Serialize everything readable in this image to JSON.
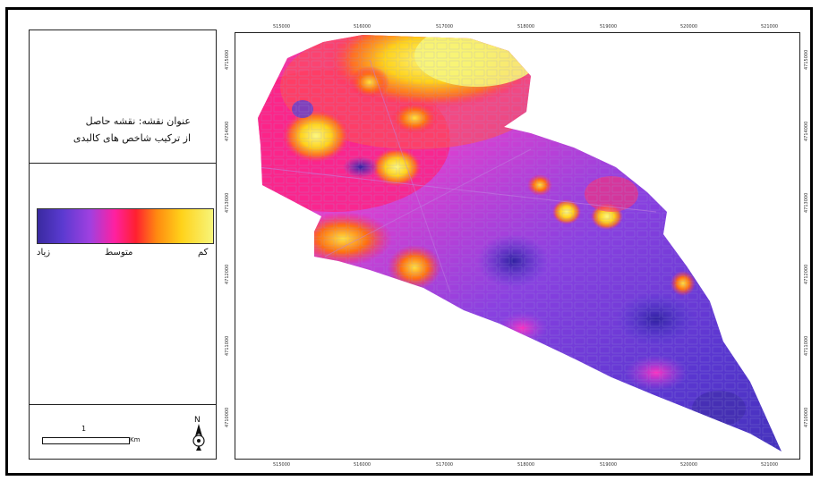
{
  "map": {
    "title_line1": "عنوان نقشه: نقشه حاصل",
    "title_line2": "از ترکیب شاخص های کالبدی",
    "legend": {
      "label_high": "زیاد",
      "label_mid": "متوسط",
      "label_low": "کم",
      "ramp_colors": [
        "#3a2aa0",
        "#5a3ad0",
        "#a040e0",
        "#ff20a0",
        "#ff2030",
        "#ff8a10",
        "#ffd21a",
        "#f7f57a"
      ]
    },
    "scale": {
      "number": "1",
      "unit": "Km"
    },
    "north_label": "N",
    "x_ticks": [
      "515000",
      "516000",
      "517000",
      "518000",
      "519000",
      "520000",
      "521000"
    ],
    "y_ticks": [
      "4715000",
      "4714000",
      "4713000",
      "4712000",
      "4711000",
      "4710000"
    ]
  }
}
